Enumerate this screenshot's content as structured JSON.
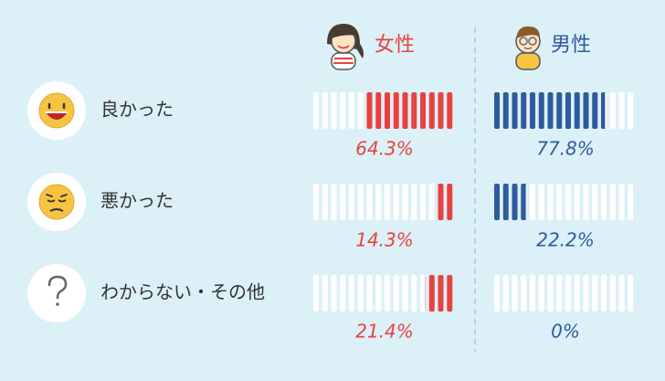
{
  "chart_data": {
    "type": "segmented-bar",
    "categories": [
      "良かった",
      "悪かった",
      "わからない・その他"
    ],
    "series": [
      {
        "name": "女性",
        "color": "#e8423f",
        "values": [
          64.3,
          14.3,
          21.4
        ],
        "value_labels": [
          "64.3%",
          "14.3%",
          "21.4%"
        ]
      },
      {
        "name": "男性",
        "color": "#2f5a9e",
        "values": [
          77.8,
          22.2,
          0
        ],
        "value_labels": [
          "77.8%",
          "22.2%",
          "0%"
        ]
      }
    ],
    "xlim": [
      0,
      100
    ]
  }
}
